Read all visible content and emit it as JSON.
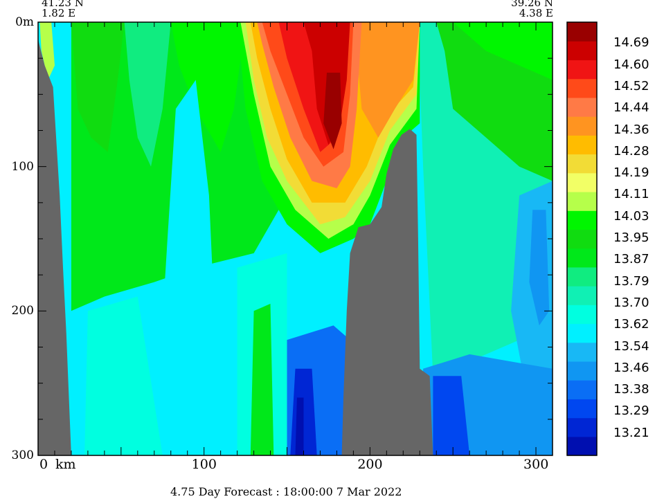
{
  "header": {
    "left_lat": "41.23 N",
    "left_lon": "1.82 E",
    "right_lat": "39.26 N",
    "right_lon": "4.38 E"
  },
  "footer": {
    "caption": "4.75 Day Forecast : 18:00:00   7 Mar 2022"
  },
  "chart_data": {
    "type": "heatmap",
    "x_unit_label": "km",
    "xlim": [
      0,
      310
    ],
    "ylim": [
      0,
      300
    ],
    "y_inverted": true,
    "y_ticks": [
      {
        "value": 0,
        "label": "0m"
      },
      {
        "value": 100,
        "label": "100"
      },
      {
        "value": 200,
        "label": "200"
      },
      {
        "value": 300,
        "label": "300"
      }
    ],
    "x_ticks": [
      {
        "value": 0,
        "label": "0"
      },
      {
        "value": 100,
        "label": "100"
      },
      {
        "value": 200,
        "label": "200"
      },
      {
        "value": 300,
        "label": "300"
      }
    ],
    "land_color": "#666666",
    "land_boundary": [
      {
        "x": 0,
        "top": 12
      },
      {
        "x": 4,
        "top": 30
      },
      {
        "x": 9,
        "top": 45
      },
      {
        "x": 13,
        "top": 120
      },
      {
        "x": 15,
        "top": 170
      },
      {
        "x": 17,
        "top": 215
      },
      {
        "x": 20,
        "top": 300
      },
      {
        "x": 183,
        "top": 300
      },
      {
        "x": 184,
        "top": 260
      },
      {
        "x": 186,
        "top": 200
      },
      {
        "x": 188,
        "top": 160
      },
      {
        "x": 193,
        "top": 142
      },
      {
        "x": 200,
        "top": 140
      },
      {
        "x": 207,
        "top": 128
      },
      {
        "x": 210,
        "top": 105
      },
      {
        "x": 214,
        "top": 88
      },
      {
        "x": 219,
        "top": 78
      },
      {
        "x": 224,
        "top": 74
      },
      {
        "x": 228,
        "top": 78
      },
      {
        "x": 229,
        "top": 150
      },
      {
        "x": 230,
        "top": 240
      },
      {
        "x": 236,
        "top": 245
      },
      {
        "x": 238,
        "top": 300
      }
    ],
    "colorbar": {
      "colors": [
        "#000fb0",
        "#0026d4",
        "#0047f0",
        "#0a6ef5",
        "#1096f2",
        "#18b8f5",
        "#00f0ff",
        "#00ffe0",
        "#10f0b4",
        "#10ec80",
        "#00e81a",
        "#10dc10",
        "#00f600",
        "#b6ff4a",
        "#f2ff66",
        "#f2dc36",
        "#ffbc00",
        "#ff9420",
        "#ff7a46",
        "#ff4a19",
        "#f01414",
        "#cc0000",
        "#990000"
      ],
      "labels": [
        "13.21",
        "13.29",
        "13.38",
        "13.46",
        "13.54",
        "13.62",
        "13.70",
        "13.79",
        "13.87",
        "13.95",
        "14.03",
        "14.11",
        "14.19",
        "14.28",
        "14.36",
        "14.44",
        "14.52",
        "14.60",
        "14.69"
      ]
    }
  }
}
